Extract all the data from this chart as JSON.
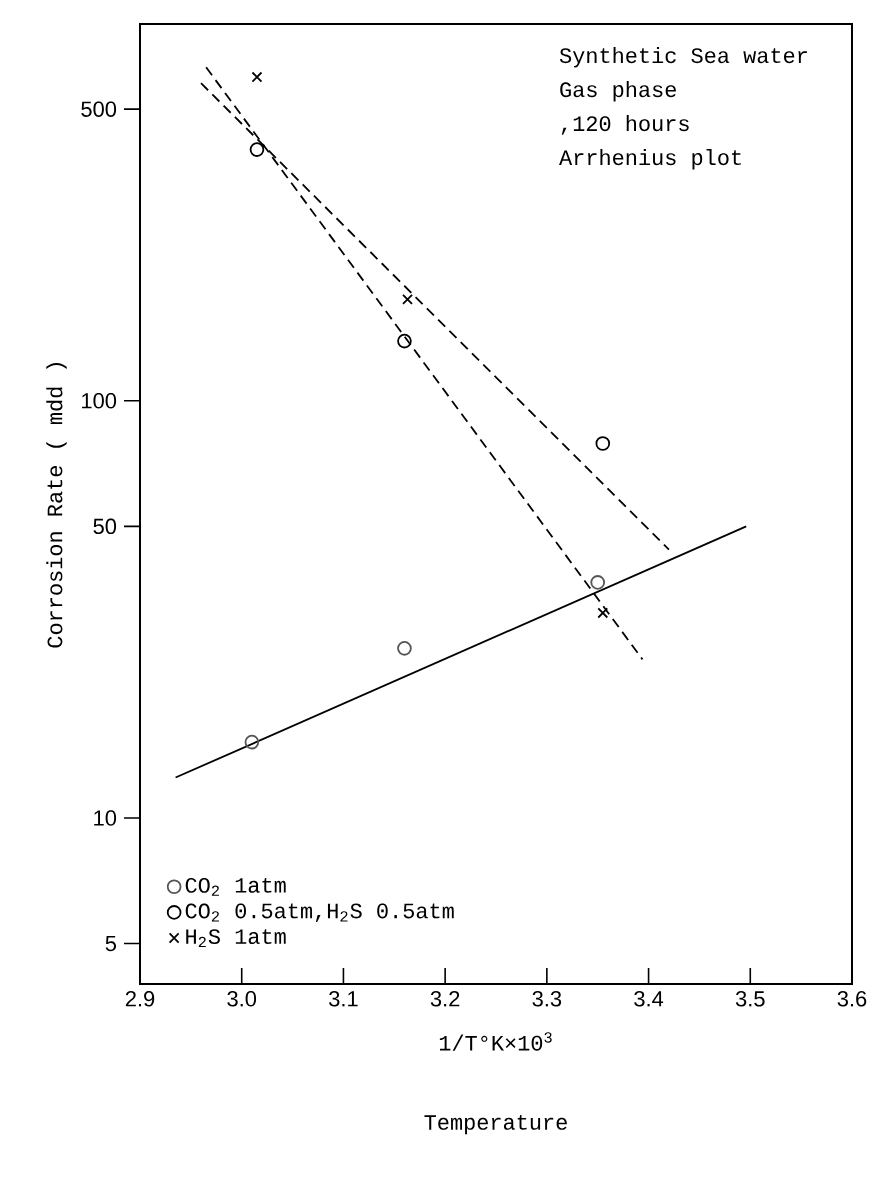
{
  "chart_data": {
    "type": "scatter",
    "ylabel": "Corrosion Rate ( mdd )",
    "xlabel": "1/T°K×10$^{3}$",
    "annotations": [
      "Synthetic Sea water",
      "Gas phase",
      ",120 hours",
      "Arrhenius plot",
      "Temperature"
    ],
    "log": "y",
    "xlim": [
      2.9,
      3.6
    ],
    "xticks": [
      2.9,
      {
        "value": 3.0,
        "label": "3.0"
      },
      3.1,
      3.2,
      3.3,
      3.4,
      3.5,
      3.6
    ],
    "ylim": [
      4,
      800
    ],
    "yticks": [
      5,
      10,
      50,
      100,
      500
    ],
    "grid": false,
    "legend": "bottom left",
    "series": [
      {
        "name": "CO$_{2}$ 1atm",
        "marker": "circle",
        "color": "#555555",
        "x": [
          3.01,
          3.16,
          3.35
        ],
        "values": [
          15.2,
          25.5,
          36.7
        ]
      },
      {
        "type": "line",
        "line_style": "solid",
        "color": "#000000",
        "x": [
          2.935,
          3.496
        ],
        "values": [
          12.5,
          50
        ]
      },
      {
        "name": "CO$_{2}$ 0.5atm,H$_{2}$S 0.5atm",
        "marker": "circle",
        "color": "#000000",
        "x": [
          3.015,
          3.16,
          3.355
        ],
        "values": [
          400,
          139,
          79
        ]
      },
      {
        "type": "line",
        "line_style": "dashed",
        "color": "#000000",
        "x": [
          2.96,
          3.42
        ],
        "values": [
          577,
          44
        ]
      },
      {
        "name": "H$_{2}$S 1atm",
        "marker": "cross",
        "color": "#000000",
        "x": [
          3.015,
          3.163,
          3.355
        ],
        "values": [
          597,
          175,
          31
        ]
      },
      {
        "type": "line",
        "line_style": "dashed",
        "color": "#000000",
        "x": [
          2.965,
          3.394
        ],
        "values": [
          630,
          24
        ]
      }
    ]
  }
}
